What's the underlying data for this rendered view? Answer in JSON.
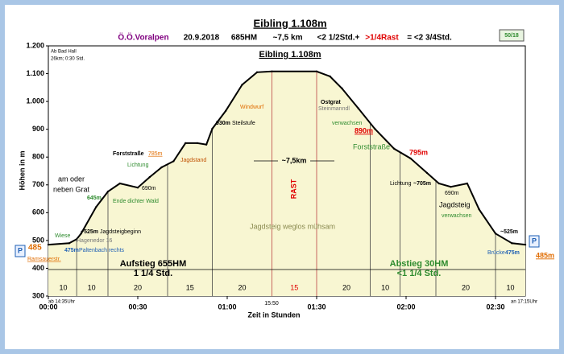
{
  "chart_data": {
    "type": "line",
    "title": "Eibling 1.108m",
    "subtitle": [
      "Ö.Ö.Voralpen",
      "20.9.2018",
      "685HM",
      "~7,5 km",
      "<2 1/2Std.+",
      ">1/4Rast",
      "= <2 3/4Std."
    ],
    "badge": "50/18",
    "x_label": "Zeit in Stunden",
    "y_label": "Höhen in m",
    "xlim": [
      0,
      160
    ],
    "ylim": [
      300,
      1200
    ],
    "xticks": [
      {
        "value": 0,
        "label": "00:00"
      },
      {
        "value": 30,
        "label": "00:30"
      },
      {
        "value": 60,
        "label": "01:00"
      },
      {
        "value": 90,
        "label": "01:30"
      },
      {
        "value": 120,
        "label": "02:00"
      },
      {
        "value": 150,
        "label": "02:30"
      }
    ],
    "yticks": [
      300,
      400,
      500,
      600,
      700,
      800,
      900,
      {
        "value": 1000,
        "label": "1.000"
      },
      {
        "value": 1100,
        "label": "1.100"
      },
      {
        "value": 1200,
        "label": "1.200"
      }
    ],
    "grid": false,
    "color": "#000000",
    "area_color": "#f8f6d2",
    "x": [
      0,
      7,
      9.5,
      11,
      16,
      20,
      24,
      30,
      34,
      38,
      42,
      46,
      50,
      53,
      55,
      59.5,
      65,
      70,
      75,
      90,
      94.5,
      98.5,
      104,
      109.5,
      116,
      121.5,
      127,
      131,
      135,
      140.5,
      144.5,
      150,
      155.5,
      160
    ],
    "values": [
      485,
      490,
      505,
      525,
      620,
      676,
      705,
      690,
      728,
      763,
      785,
      850,
      850,
      845,
      902,
      966,
      1060,
      1105,
      1108,
      1108,
      1090,
      1047,
      975,
      902,
      830,
      795,
      743,
      705,
      693,
      705,
      612,
      525,
      490,
      485
    ],
    "dividers": [
      9.5,
      20,
      40,
      55,
      75,
      90,
      108,
      118,
      130,
      150
    ],
    "segments": {
      "x": [
        5,
        14.5,
        30,
        47.5,
        65,
        82.5,
        100,
        113,
        140,
        155
      ],
      "values": [
        10,
        10,
        20,
        15,
        20,
        15,
        20,
        10,
        20,
        10
      ]
    },
    "annotations": [
      "Ab Bad Hall",
      "26km; 0:30 Std.",
      "am oder",
      "neben Grat",
      "645m",
      "Ende dichter Wald",
      "Lichtung",
      "690m",
      "Forststraße",
      "785m",
      "Jagdstand",
      "930m",
      "Steilstufe",
      "Windwurf",
      "~7,5km",
      "RAST",
      "Ostgrat",
      "Steinmanndl",
      "verwachsen",
      "890m",
      "Forststraße",
      "795m",
      "Lichtung",
      "~705m",
      "690m",
      "Jagdsteig",
      "verwachsen",
      "Jagdsteig weglos mühsam",
      "Wiese",
      "~525m",
      "Jagdsteigbeginn",
      "Hagenedor 16",
      "475m",
      "Paltenbach rechts",
      "485",
      "Ramsauerstr.",
      "~525m",
      "Brücke",
      "475m",
      "485m",
      "Aufstieg 655HM",
      "1 1/4 Std.",
      "Abstieg 30HM",
      "<1 1/4 Std.",
      "ab 14:35Uhr",
      "15:50",
      "an 17:15Uhr",
      "P",
      "P"
    ]
  }
}
